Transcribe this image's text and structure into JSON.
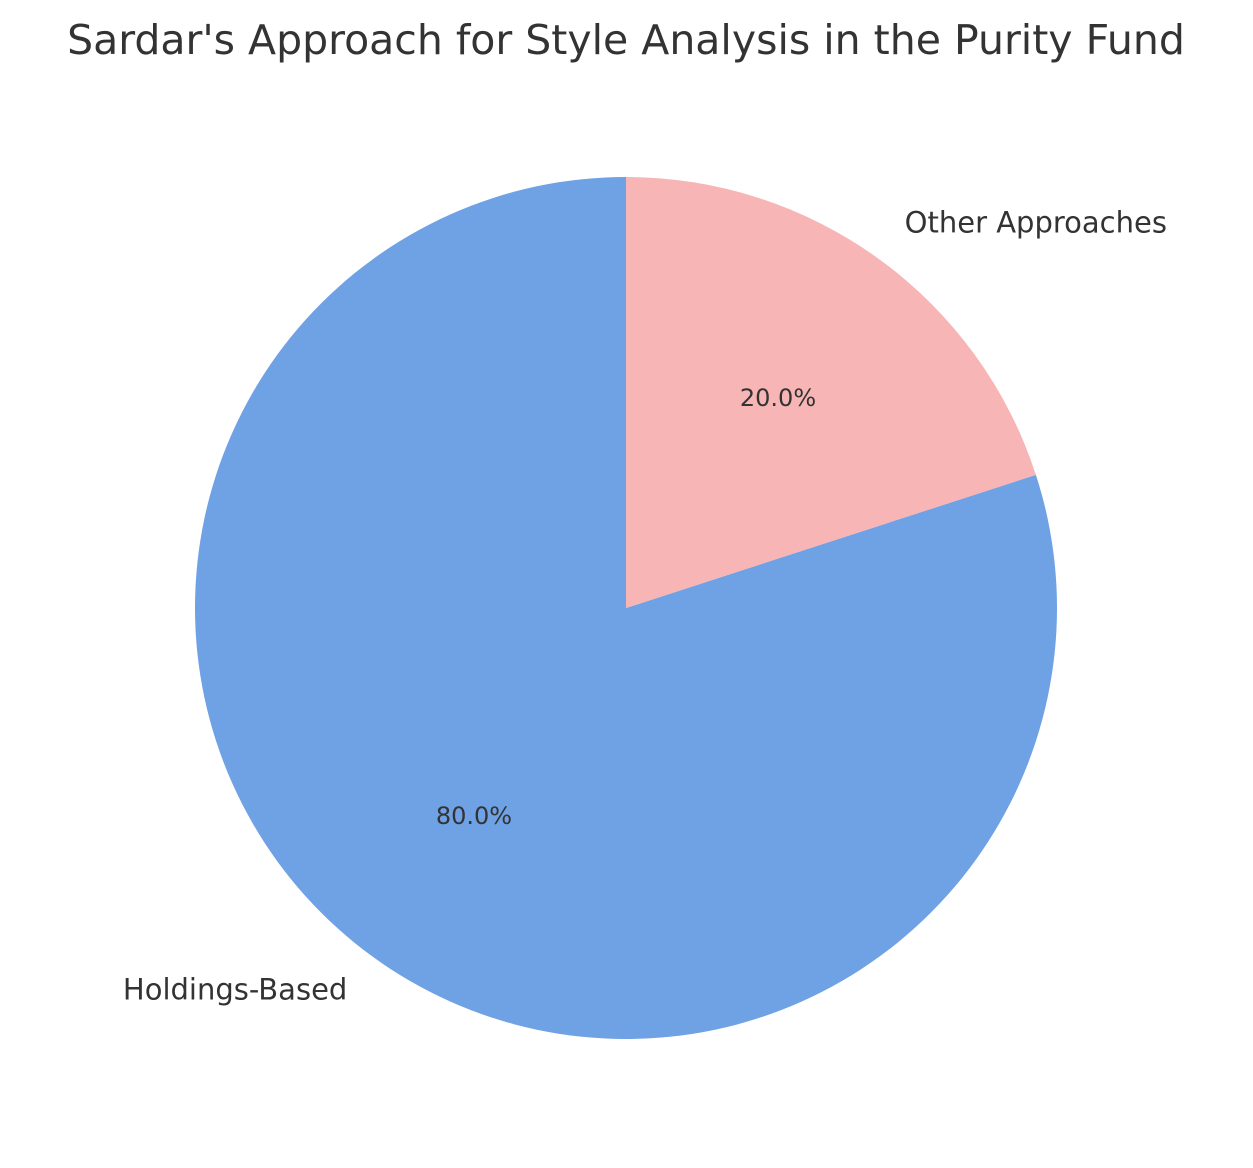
{
  "chart_data": {
    "type": "pie",
    "title": "Sardar's Approach for Style Analysis in the Purity Fund",
    "start_angle_deg": 90,
    "direction": "counterclockwise",
    "slices": [
      {
        "label": "Holdings-Based",
        "value": 80.0,
        "pct_label": "80.0%",
        "color": "#6fa1e5"
      },
      {
        "label": "Other Approaches",
        "value": 20.0,
        "pct_label": "20.0%",
        "color": "#f7b5b5"
      }
    ]
  }
}
